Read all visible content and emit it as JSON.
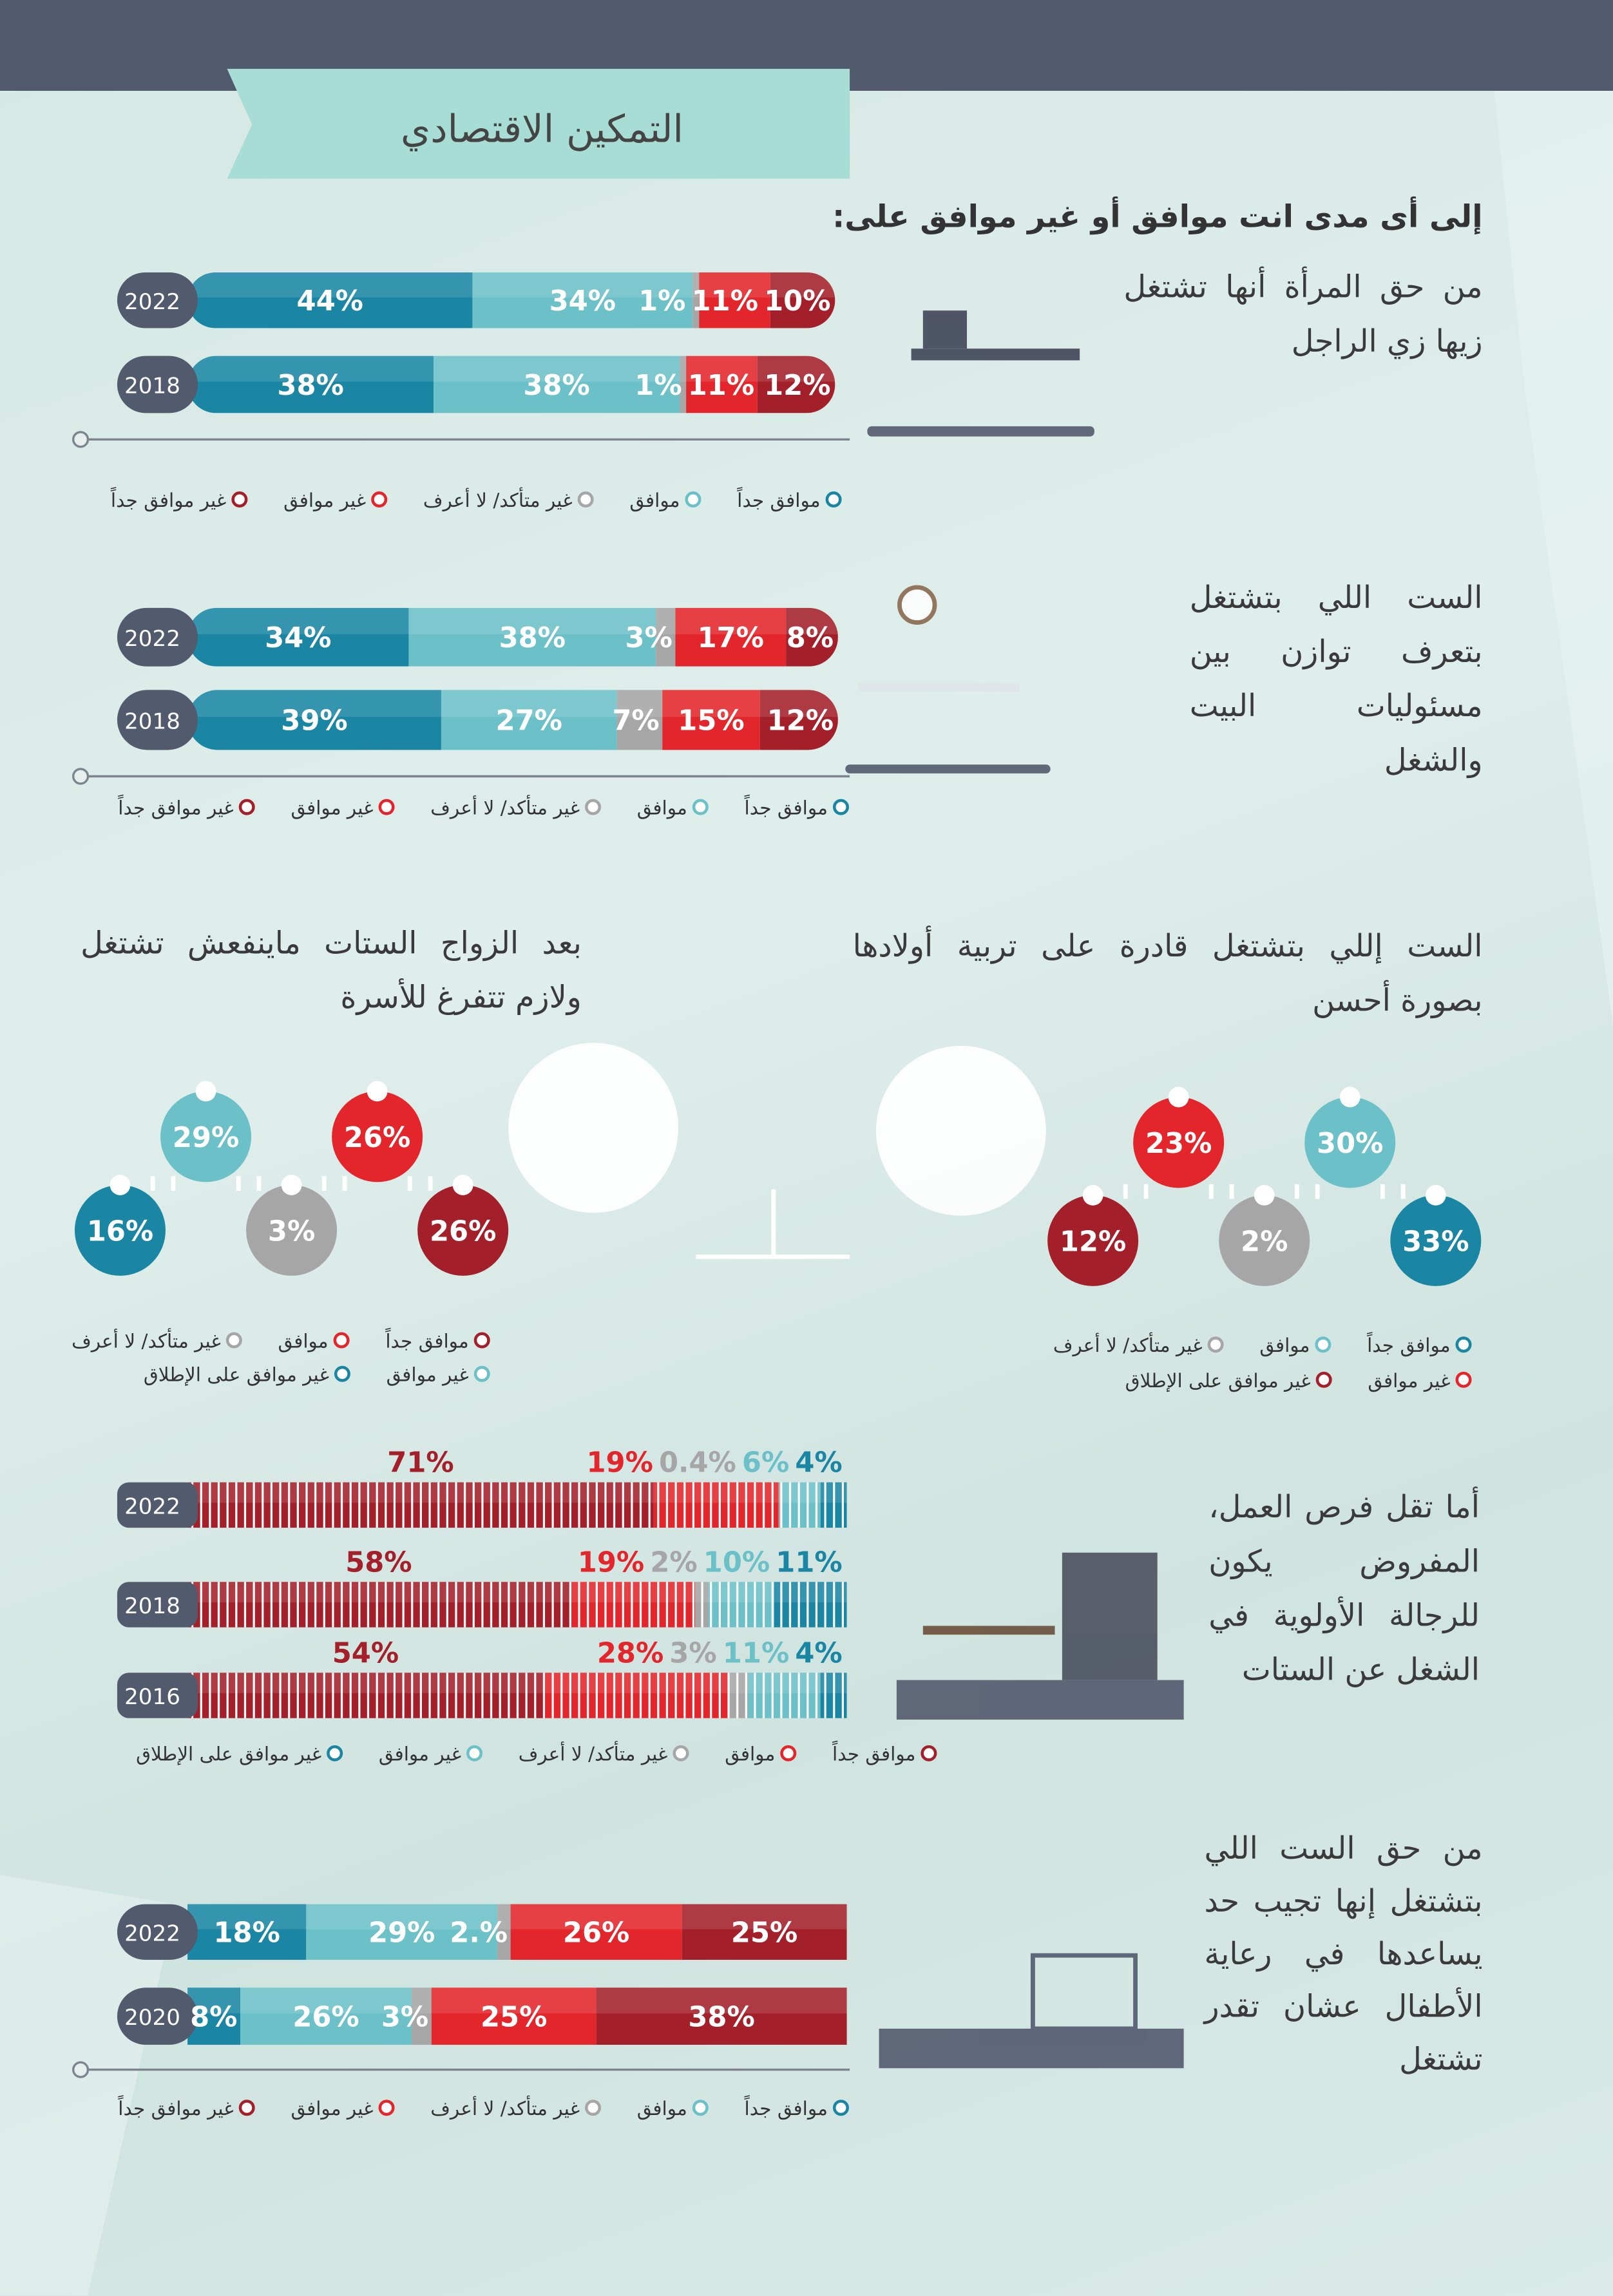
{
  "header": {
    "title": "التمكين الاقتصادي"
  },
  "question": "إلى أى مدى انت موافق أو غير موافق على:",
  "sections": [
    {
      "type": "rounded_bar",
      "statement": "من حق المرأة أنها تشتغل زيها زي الراجل",
      "legend": [
        {
          "name": "موافق جداً",
          "color": "#1a86a3"
        },
        {
          "name": "موافق",
          "color": "#6cc0c8"
        },
        {
          "name": "غير متأكد/ لا أعرف",
          "color": "#a6a6a6"
        },
        {
          "name": "غير موافق",
          "color": "#e3262b"
        },
        {
          "name": "غير موافق جداً",
          "color": "#a3202a"
        }
      ],
      "rows": [
        {
          "label": "2022",
          "values": [
            44,
            34,
            1,
            11,
            10
          ],
          "value_labels": [
            "44%",
            "34%",
            "1%",
            "11%",
            "10%"
          ]
        },
        {
          "label": "2018",
          "values": [
            38,
            38,
            1,
            11,
            12
          ],
          "value_labels": [
            "38%",
            "38%",
            "1%",
            "11%",
            "12%"
          ]
        }
      ]
    },
    {
      "type": "rounded_bar",
      "statement": "الست اللي بتشتغل بتعرف توازن بين مسئوليات البيت والشغل",
      "legend": [
        {
          "name": "موافق جداً",
          "color": "#1a86a3"
        },
        {
          "name": "موافق",
          "color": "#6cc0c8"
        },
        {
          "name": "غير متأكد/ لا أعرف",
          "color": "#a6a6a6"
        },
        {
          "name": "غير موافق",
          "color": "#e3262b"
        },
        {
          "name": "غير موافق جداً",
          "color": "#a3202a"
        }
      ],
      "rows": [
        {
          "label": "2022",
          "values": [
            34,
            38,
            3,
            17,
            8
          ],
          "value_labels": [
            "34%",
            "38%",
            "3%",
            "17%",
            "8%"
          ]
        },
        {
          "label": "2018",
          "values": [
            39,
            27,
            7,
            15,
            12
          ],
          "value_labels": [
            "39%",
            "27%",
            "7%",
            "15%",
            "12%"
          ]
        }
      ]
    },
    {
      "type": "bubbles",
      "statement": "الست إللي بتشتغل قادرة على تربية أولادها بصورة أحسن",
      "legend": [
        {
          "name": "موافق جداً",
          "color": "#1a86a3"
        },
        {
          "name": "موافق",
          "color": "#6cc0c8"
        },
        {
          "name": "غير متأكد/ لا أعرف",
          "color": "#a6a6a6"
        },
        {
          "name": "غير موافق",
          "color": "#e3262b"
        },
        {
          "name": "غير موافق على الإطلاق",
          "color": "#a3202a"
        }
      ],
      "values": [
        33,
        30,
        2,
        23,
        12
      ],
      "value_labels": [
        "33%",
        "30%",
        "2%",
        "23%",
        "12%"
      ]
    },
    {
      "type": "bubbles",
      "statement": "بعد الزواج الستات ماينفعش تشتغل ولازم تتفرغ للأسرة",
      "legend": [
        {
          "name": "موافق جداً",
          "color": "#a3202a"
        },
        {
          "name": "موافق",
          "color": "#e3262b"
        },
        {
          "name": "غير متأكد/ لا أعرف",
          "color": "#a6a6a6"
        },
        {
          "name": "غير موافق",
          "color": "#6cc0c8"
        },
        {
          "name": "غير موافق على الإطلاق",
          "color": "#1a86a3"
        }
      ],
      "values": [
        26,
        26,
        3,
        29,
        16
      ],
      "value_labels": [
        "26%",
        "26%",
        "3%",
        "29%",
        "16%"
      ]
    },
    {
      "type": "striped_bar",
      "statement": "أما تقل فرص العمل، المفروض يكون للرجالة الأولوية في الشغل عن الستات",
      "legend": [
        {
          "name": "موافق جداً",
          "color": "#a3202a"
        },
        {
          "name": "موافق",
          "color": "#e3262b"
        },
        {
          "name": "غير متأكد/ لا أعرف",
          "color": "#a6a6a6"
        },
        {
          "name": "غير موافق",
          "color": "#6cc0c8"
        },
        {
          "name": "غير موافق على الإطلاق",
          "color": "#1a86a3"
        }
      ],
      "rows": [
        {
          "label": "2022",
          "values": [
            71,
            19,
            0.4,
            6,
            4
          ],
          "value_labels": [
            "71%",
            "19%",
            "0.4%",
            "6%",
            "4%"
          ]
        },
        {
          "label": "2018",
          "values": [
            58,
            19,
            2,
            10,
            11
          ],
          "value_labels": [
            "58%",
            "19%",
            "2%",
            "10%",
            "11%"
          ]
        },
        {
          "label": "2016",
          "values": [
            54,
            28,
            3,
            11,
            4
          ],
          "value_labels": [
            "54%",
            "28%",
            "3%",
            "11%",
            "4%"
          ]
        }
      ]
    },
    {
      "type": "flat_bar",
      "statement": "من حق الست اللي بتشتغل إنها تجيب حد يساعدها في رعاية الأطفال عشان تقدر تشتغل",
      "legend": [
        {
          "name": "موافق جداً",
          "color": "#1a86a3"
        },
        {
          "name": "موافق",
          "color": "#6cc0c8"
        },
        {
          "name": "غير متأكد/ لا أعرف",
          "color": "#a6a6a6"
        },
        {
          "name": "غير موافق",
          "color": "#e3262b"
        },
        {
          "name": "غير موافق جداً",
          "color": "#a3202a"
        }
      ],
      "rows": [
        {
          "label": "2022",
          "values": [
            18,
            29,
            2,
            26,
            25
          ],
          "value_labels": [
            "18%",
            "29%",
            "2.%",
            "26%",
            "25%"
          ]
        },
        {
          "label": "2020",
          "values": [
            8,
            26,
            3,
            25,
            38
          ],
          "value_labels": [
            "8%",
            "26%",
            "3%",
            "25%",
            "38%"
          ]
        }
      ]
    }
  ]
}
